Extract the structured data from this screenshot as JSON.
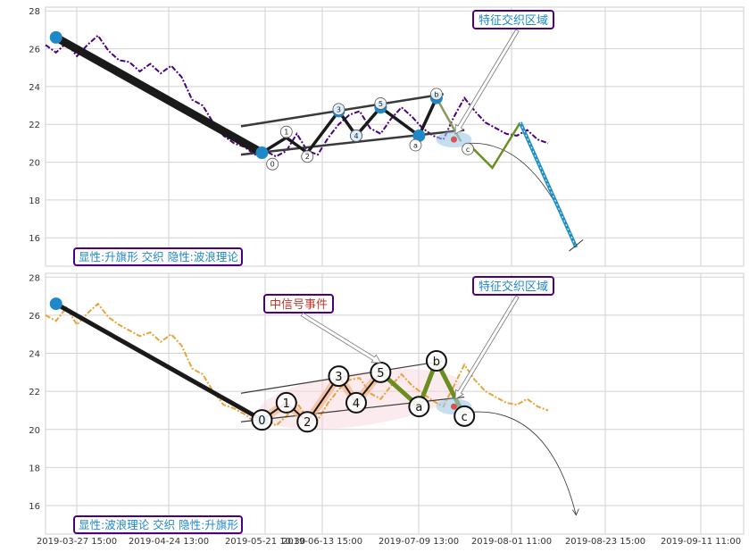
{
  "colors": {
    "price_top": "#4b0082",
    "price_bottom": "#e8a33a",
    "accent_blue": "#1f88c9",
    "grid": "#d2d2d2",
    "wave_black": "#1a1a1a",
    "olive": "#6b8e23",
    "channel": "#3a3a3a",
    "label_border": "#4b0082",
    "label_text_blue": "#1f88c9",
    "label_text_red": "#c0392b",
    "forecast_blue": "#1f8fc2"
  },
  "x_tick_labels": [
    "2019-03-27 15:00",
    "2019-04-24 13:00",
    "2019-05-21 10:30",
    "2019-06-13 15:00",
    "2019-07-09 13:00",
    "2019-08-01 11:00",
    "2019-08-23 15:00",
    "2019-09-11 11:00"
  ],
  "chart_data": [
    {
      "type": "line",
      "panel": "top",
      "ylim": [
        14.5,
        28.2
      ],
      "yticks": [
        16,
        18,
        20,
        22,
        24,
        26,
        28
      ],
      "xlim": [
        0,
        100
      ],
      "series": [
        {
          "kind": "price",
          "x": [
            0,
            1.5,
            3,
            4.5,
            6,
            7.5,
            9,
            10.5,
            12,
            13.5,
            15,
            16.5,
            18,
            19.5,
            21,
            22.5,
            24,
            25.5,
            27,
            28.5,
            30,
            31.5,
            33,
            34.5,
            36,
            37.5,
            39,
            40.5,
            42,
            43.5,
            45,
            46.5,
            48,
            49.5,
            51,
            52.5,
            54,
            55.5,
            57,
            58.5,
            60,
            61.5,
            63,
            64.5,
            66,
            67.5,
            69,
            70.5,
            72
          ],
          "y": [
            26.2,
            25.8,
            26.3,
            25.6,
            26.2,
            26.7,
            25.9,
            25.4,
            25.3,
            24.8,
            25.2,
            24.7,
            25.1,
            24.5,
            23.3,
            23.0,
            22.1,
            21.4,
            21.0,
            20.8,
            20.4,
            20.6,
            20.3,
            20.6,
            21.5,
            20.6,
            20.4,
            21.3,
            22.0,
            22.5,
            22.7,
            21.8,
            21.5,
            22.3,
            22.9,
            22.4,
            21.8,
            21.4,
            21.2,
            22.4,
            23.4,
            22.7,
            22.1,
            21.8,
            21.5,
            21.4,
            21.7,
            21.2,
            21.0
          ]
        }
      ],
      "pivots": {
        "x": [
          1.5,
          31,
          34.5,
          37.5,
          42,
          44.5,
          48,
          53.5,
          56
        ],
        "y": [
          26.6,
          20.5,
          21.3,
          20.5,
          22.7,
          21.4,
          22.9,
          21.4,
          23.4
        ],
        "labels": [
          "",
          "",
          "1",
          "2",
          "3",
          "4",
          "5",
          "a",
          "b"
        ]
      },
      "point_labels": [
        "0",
        "1",
        "2",
        "3",
        "4",
        "5",
        "a",
        "b",
        "c"
      ],
      "forecast": {
        "x": [
          60.5,
          64,
          68,
          76
        ],
        "y": [
          21.0,
          19.7,
          22.1,
          15.5
        ]
      },
      "channel": {
        "upper": {
          "x": [
            28,
            57
          ],
          "y": [
            21.9,
            23.6
          ]
        },
        "lower": {
          "x": [
            28,
            60
          ],
          "y": [
            20.4,
            21.7
          ]
        }
      },
      "label_box": "显性:升旗形 交织 隐性:波浪理论",
      "annotations": [
        "特征交织区域"
      ]
    },
    {
      "type": "line",
      "panel": "bottom",
      "ylim": [
        14.5,
        28.2
      ],
      "yticks": [
        16,
        18,
        20,
        22,
        24,
        26,
        28
      ],
      "xlim": [
        0,
        100
      ],
      "series": [
        {
          "kind": "price",
          "x": [
            0,
            1.5,
            3,
            4.5,
            6,
            7.5,
            9,
            10.5,
            12,
            13.5,
            15,
            16.5,
            18,
            19.5,
            21,
            22.5,
            24,
            25.5,
            27,
            28.5,
            30,
            31.5,
            33,
            34.5,
            36,
            37.5,
            39,
            40.5,
            42,
            43.5,
            45,
            46.5,
            48,
            49.5,
            51,
            52.5,
            54,
            55.5,
            57,
            58.5,
            60,
            61.5,
            63,
            64.5,
            66,
            67.5,
            69,
            70.5,
            72
          ],
          "y": [
            26.0,
            25.7,
            26.4,
            25.5,
            26.1,
            26.6,
            25.9,
            25.5,
            25.2,
            24.9,
            25.1,
            24.6,
            25.0,
            24.4,
            23.2,
            22.9,
            22.0,
            21.3,
            21.1,
            20.8,
            20.4,
            20.6,
            20.2,
            20.7,
            21.4,
            20.6,
            20.5,
            21.4,
            22.1,
            22.6,
            22.7,
            21.9,
            21.6,
            22.3,
            22.9,
            22.3,
            21.9,
            21.5,
            21.2,
            22.3,
            23.4,
            22.6,
            22.0,
            21.7,
            21.4,
            21.3,
            21.6,
            21.2,
            21.0
          ]
        }
      ],
      "pivots": {
        "x": [
          1.5,
          31,
          34.5,
          37.5,
          42,
          44.5,
          48,
          53.5,
          56,
          60
        ],
        "y": [
          26.6,
          20.5,
          21.4,
          20.4,
          22.8,
          21.4,
          23.0,
          21.2,
          23.6,
          20.7
        ],
        "labels": [
          "",
          "0",
          "1",
          "2",
          "3",
          "4",
          "5",
          "a",
          "b",
          "c"
        ]
      },
      "forecast": {
        "x": [
          60.5,
          64,
          68,
          72,
          76
        ],
        "y": [
          20.9,
          20.9,
          20.2,
          18.5,
          15.5
        ]
      },
      "channel": {
        "upper": {
          "x": [
            28,
            57
          ],
          "y": [
            21.9,
            23.6
          ]
        },
        "lower": {
          "x": [
            28,
            60
          ],
          "y": [
            20.4,
            21.7
          ]
        }
      },
      "label_box": "显性:波浪理论 交织 隐性:升旗形",
      "annotations": [
        "特征交织区域",
        "中信号事件"
      ]
    }
  ]
}
